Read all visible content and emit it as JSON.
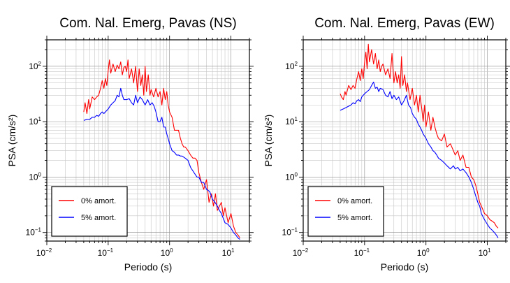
{
  "chart_data": [
    {
      "type": "line",
      "title": "Com. Nal. Emerg, Pavas (NS)",
      "xlabel": "Periodo (s)",
      "ylabel": "PSA (cm/s²)",
      "xscale": "log",
      "yscale": "log",
      "xlim": [
        0.01,
        20
      ],
      "ylim": [
        0.07,
        300
      ],
      "grid": true,
      "legend_position": "bottom-left",
      "xticks": [
        {
          "value": 0.01,
          "base": "10",
          "exp": "−2"
        },
        {
          "value": 0.1,
          "base": "10",
          "exp": "−1"
        },
        {
          "value": 1,
          "base": "10",
          "exp": "0"
        },
        {
          "value": 10,
          "base": "10",
          "exp": "1"
        }
      ],
      "yticks": [
        {
          "value": 0.1,
          "label": "10",
          "exp": "−1"
        },
        {
          "value": 1,
          "label": "10",
          "exp": "0"
        },
        {
          "value": 10,
          "label": "10",
          "exp": "1"
        },
        {
          "value": 100,
          "label": "10",
          "exp": "2"
        }
      ],
      "series": [
        {
          "name": "0% amort.",
          "color": "#ff0000",
          "x": [
            0.04,
            0.042,
            0.045,
            0.048,
            0.05,
            0.055,
            0.06,
            0.065,
            0.07,
            0.075,
            0.08,
            0.085,
            0.09,
            0.095,
            0.1,
            0.105,
            0.11,
            0.12,
            0.13,
            0.14,
            0.15,
            0.16,
            0.17,
            0.18,
            0.19,
            0.2,
            0.21,
            0.22,
            0.24,
            0.26,
            0.28,
            0.3,
            0.32,
            0.34,
            0.36,
            0.38,
            0.4,
            0.42,
            0.45,
            0.48,
            0.5,
            0.55,
            0.6,
            0.65,
            0.7,
            0.75,
            0.8,
            0.85,
            0.9,
            0.95,
            1.0,
            1.1,
            1.2,
            1.3,
            1.4,
            1.5,
            1.6,
            1.7,
            1.8,
            2.0,
            2.2,
            2.4,
            2.6,
            2.8,
            3.0,
            3.3,
            3.6,
            4.0,
            4.4,
            4.8,
            5.2,
            5.6,
            6.0,
            6.5,
            7.0,
            7.5,
            8.0,
            9.0,
            10.0,
            11.0,
            12.0,
            13.0,
            14.0
          ],
          "y": [
            15,
            22,
            14,
            25,
            17,
            28,
            25,
            28,
            30,
            40,
            55,
            40,
            60,
            45,
            85,
            130,
            75,
            110,
            80,
            105,
            90,
            120,
            70,
            95,
            100,
            80,
            130,
            60,
            90,
            50,
            100,
            35,
            90,
            45,
            70,
            30,
            100,
            35,
            70,
            30,
            38,
            28,
            40,
            28,
            35,
            20,
            40,
            25,
            35,
            20,
            15,
            12,
            7,
            7,
            7,
            5,
            4,
            3.5,
            3.5,
            3,
            2.5,
            2.2,
            2.2,
            2.0,
            1.2,
            0.8,
            0.6,
            0.9,
            0.35,
            0.5,
            0.3,
            0.5,
            0.25,
            0.3,
            0.35,
            0.2,
            0.28,
            0.15,
            0.22,
            0.13,
            0.1,
            0.09,
            0.08
          ]
        },
        {
          "name": "5% amort.",
          "color": "#0000ff",
          "x": [
            0.04,
            0.045,
            0.05,
            0.055,
            0.06,
            0.065,
            0.07,
            0.075,
            0.08,
            0.085,
            0.09,
            0.1,
            0.11,
            0.12,
            0.13,
            0.14,
            0.15,
            0.16,
            0.17,
            0.18,
            0.2,
            0.22,
            0.24,
            0.26,
            0.28,
            0.3,
            0.33,
            0.36,
            0.4,
            0.44,
            0.48,
            0.52,
            0.56,
            0.6,
            0.65,
            0.7,
            0.75,
            0.8,
            0.85,
            0.9,
            0.95,
            1.0,
            1.1,
            1.2,
            1.3,
            1.4,
            1.5,
            1.6,
            1.8,
            2.0,
            2.2,
            2.5,
            2.8,
            3.0,
            3.3,
            3.6,
            4.0,
            4.5,
            5.0,
            5.5,
            6.0,
            6.5,
            7.0,
            7.5,
            8.0,
            9.0,
            10.0,
            11.0,
            12.0,
            13.0,
            14.0
          ],
          "y": [
            10.5,
            11,
            11,
            12,
            12,
            13,
            12.5,
            14,
            15,
            14,
            15,
            17,
            20,
            22,
            24,
            30,
            28,
            40,
            30,
            25,
            25,
            26,
            22,
            20,
            30,
            22,
            28,
            25,
            20,
            25,
            20,
            22,
            19,
            15,
            10,
            10,
            12,
            8,
            8,
            6,
            5,
            4,
            3,
            2.8,
            2.5,
            2.5,
            2.4,
            2.4,
            2.2,
            2.0,
            1.5,
            1.2,
            1.0,
            1.0,
            0.8,
            0.8,
            0.6,
            0.55,
            0.4,
            0.35,
            0.3,
            0.25,
            0.22,
            0.18,
            0.15,
            0.14,
            0.12,
            0.1,
            0.09,
            0.08,
            0.075
          ]
        }
      ]
    },
    {
      "type": "line",
      "title": "Com. Nal. Emerg, Pavas (EW)",
      "xlabel": "Periodo (s)",
      "ylabel": "PSA (cm/s²)",
      "xscale": "log",
      "yscale": "log",
      "xlim": [
        0.01,
        20
      ],
      "ylim": [
        0.07,
        300
      ],
      "grid": true,
      "legend_position": "bottom-left",
      "xticks": [
        {
          "value": 0.01,
          "base": "10",
          "exp": "−2"
        },
        {
          "value": 0.1,
          "base": "10",
          "exp": "−1"
        },
        {
          "value": 1,
          "base": "10",
          "exp": "0"
        },
        {
          "value": 10,
          "base": "10",
          "exp": "1"
        }
      ],
      "yticks": [
        {
          "value": 0.1,
          "label": "10",
          "exp": "−1"
        },
        {
          "value": 1,
          "label": "10",
          "exp": "0"
        },
        {
          "value": 10,
          "label": "10",
          "exp": "1"
        },
        {
          "value": 100,
          "label": "10",
          "exp": "2"
        }
      ],
      "series": [
        {
          "name": "0% amort.",
          "color": "#ff0000",
          "x": [
            0.04,
            0.042,
            0.045,
            0.048,
            0.05,
            0.055,
            0.06,
            0.065,
            0.07,
            0.075,
            0.08,
            0.085,
            0.09,
            0.095,
            0.1,
            0.105,
            0.11,
            0.115,
            0.12,
            0.13,
            0.14,
            0.15,
            0.16,
            0.17,
            0.18,
            0.19,
            0.2,
            0.22,
            0.24,
            0.26,
            0.28,
            0.3,
            0.32,
            0.34,
            0.36,
            0.38,
            0.4,
            0.42,
            0.45,
            0.48,
            0.5,
            0.55,
            0.6,
            0.65,
            0.7,
            0.75,
            0.8,
            0.85,
            0.9,
            0.95,
            1.0,
            1.1,
            1.2,
            1.3,
            1.4,
            1.5,
            1.6,
            1.8,
            2.0,
            2.2,
            2.5,
            2.8,
            3.0,
            3.3,
            3.6,
            4.0,
            4.5,
            5.0,
            5.5,
            6.0,
            6.5,
            7.0,
            7.5,
            8.0,
            9.0,
            10.0,
            11.0,
            12.0,
            13.0,
            14.0,
            15.0
          ],
          "y": [
            32,
            28,
            25,
            35,
            30,
            45,
            38,
            45,
            40,
            60,
            80,
            55,
            90,
            60,
            120,
            180,
            90,
            250,
            120,
            200,
            110,
            170,
            90,
            130,
            80,
            100,
            110,
            70,
            90,
            60,
            170,
            50,
            80,
            50,
            70,
            40,
            150,
            45,
            70,
            35,
            50,
            25,
            40,
            20,
            30,
            15,
            30,
            18,
            10,
            20,
            8,
            15,
            7,
            12,
            8,
            6,
            5,
            4.5,
            6,
            3.5,
            4,
            3,
            2.5,
            3,
            2,
            2.5,
            1.5,
            1.5,
            1.0,
            0.9,
            0.7,
            0.5,
            0.35,
            0.3,
            0.22,
            0.2,
            0.17,
            0.16,
            0.15,
            0.13,
            0.12
          ]
        },
        {
          "name": "5% amort.",
          "color": "#0000ff",
          "x": [
            0.04,
            0.045,
            0.05,
            0.055,
            0.06,
            0.065,
            0.07,
            0.075,
            0.08,
            0.085,
            0.09,
            0.1,
            0.11,
            0.12,
            0.13,
            0.14,
            0.15,
            0.16,
            0.17,
            0.18,
            0.2,
            0.22,
            0.24,
            0.26,
            0.28,
            0.3,
            0.33,
            0.36,
            0.4,
            0.44,
            0.48,
            0.52,
            0.56,
            0.6,
            0.65,
            0.7,
            0.75,
            0.8,
            0.85,
            0.9,
            0.95,
            1.0,
            1.1,
            1.2,
            1.3,
            1.4,
            1.5,
            1.6,
            1.8,
            2.0,
            2.2,
            2.5,
            2.8,
            3.0,
            3.3,
            3.6,
            4.0,
            4.5,
            5.0,
            5.5,
            6.0,
            6.5,
            7.0,
            7.5,
            8.0,
            9.0,
            10.0,
            11.0,
            12.0,
            13.0,
            14.0,
            15.0
          ],
          "y": [
            16,
            17,
            18,
            19,
            20,
            22,
            21,
            24,
            25,
            23,
            28,
            32,
            35,
            38,
            45,
            52,
            40,
            42,
            35,
            40,
            38,
            30,
            28,
            35,
            26,
            30,
            25,
            28,
            20,
            24,
            30,
            20,
            18,
            14,
            12,
            11,
            9,
            8,
            7,
            6,
            5.5,
            5,
            4,
            3.5,
            3,
            2.8,
            2.5,
            2.2,
            2.0,
            1.8,
            1.6,
            1.4,
            1.6,
            1.4,
            1.5,
            1.3,
            1.4,
            1.2,
            1.0,
            0.8,
            0.6,
            0.45,
            0.35,
            0.3,
            0.22,
            0.17,
            0.14,
            0.12,
            0.11,
            0.1,
            0.09,
            0.08
          ]
        }
      ]
    }
  ]
}
